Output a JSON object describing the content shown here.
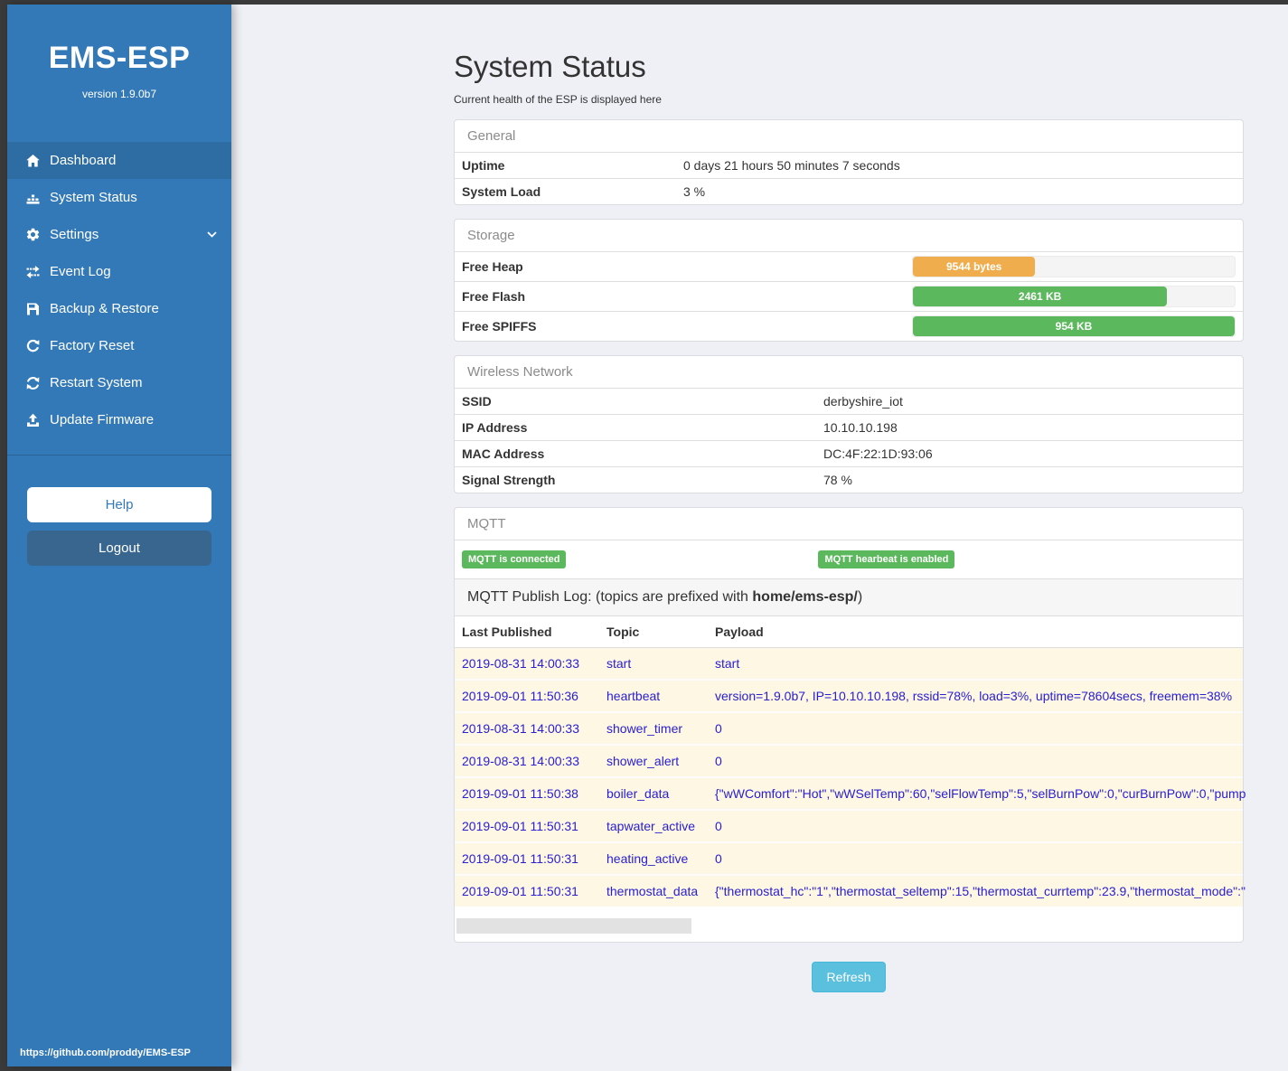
{
  "colors": {
    "sidebar_blue": "#3379b7",
    "active_item_blue": "#2d6da4",
    "badge_green": "#5cb85c",
    "bar_orange": "#f0ad4e",
    "bar_green": "#5cb85c",
    "refresh_blue": "#5bc0de",
    "log_text_blue": "#2a20d0",
    "log_row_cream": "#fdf7e3"
  },
  "sidebar": {
    "brand": "EMS-ESP",
    "version": "version 1.9.0b7",
    "items": [
      {
        "label": "Dashboard",
        "icon": "home-icon",
        "active": true,
        "chevron": false
      },
      {
        "label": "System Status",
        "icon": "status-icon",
        "active": false,
        "chevron": false
      },
      {
        "label": "Settings",
        "icon": "gear-icon",
        "active": false,
        "chevron": true
      },
      {
        "label": "Event Log",
        "icon": "exchange-icon",
        "active": false,
        "chevron": false
      },
      {
        "label": "Backup & Restore",
        "icon": "save-icon",
        "active": false,
        "chevron": false
      },
      {
        "label": "Factory Reset",
        "icon": "rotate-icon",
        "active": false,
        "chevron": false
      },
      {
        "label": "Restart System",
        "icon": "refresh-icon",
        "active": false,
        "chevron": false
      },
      {
        "label": "Update Firmware",
        "icon": "upload-icon",
        "active": false,
        "chevron": false
      }
    ],
    "help_label": "Help",
    "logout_label": "Logout",
    "footer_link": "https://github.com/proddy/EMS-ESP"
  },
  "page": {
    "title": "System Status",
    "subtitle": "Current health of the ESP is displayed here"
  },
  "panels": {
    "general": {
      "title": "General",
      "rows": [
        {
          "label": "Uptime",
          "value": "0 days 21 hours 50 minutes 7 seconds"
        },
        {
          "label": "System Load",
          "value": "3 %"
        }
      ]
    },
    "storage": {
      "title": "Storage",
      "rows": [
        {
          "label": "Free Heap",
          "value": "9544 bytes",
          "percent": 38,
          "color": "#f0ad4e"
        },
        {
          "label": "Free Flash",
          "value": "2461 KB",
          "percent": 79,
          "color": "#5cb85c"
        },
        {
          "label": "Free SPIFFS",
          "value": "954 KB",
          "percent": 100,
          "color": "#5cb85c"
        }
      ]
    },
    "wireless": {
      "title": "Wireless Network",
      "rows": [
        {
          "label": "SSID",
          "value": "derbyshire_iot"
        },
        {
          "label": "IP Address",
          "value": "10.10.10.198"
        },
        {
          "label": "MAC Address",
          "value": "DC:4F:22:1D:93:06"
        },
        {
          "label": "Signal Strength",
          "value": "78 %"
        }
      ]
    },
    "mqtt": {
      "title": "MQTT",
      "badges": [
        {
          "label": "MQTT is connected"
        },
        {
          "label": "MQTT hearbeat is enabled"
        }
      ],
      "log_title_prefix": "MQTT Publish Log: (topics are prefixed with ",
      "log_topic_prefix": "home/ems-esp/",
      "log_title_suffix": ")",
      "columns": [
        "Last Published",
        "Topic",
        "Payload"
      ],
      "rows": [
        {
          "last_published": "2019-08-31 14:00:33",
          "topic": "start",
          "payload": "start"
        },
        {
          "last_published": "2019-09-01 11:50:36",
          "topic": "heartbeat",
          "payload": "version=1.9.0b7, IP=10.10.10.198, rssid=78%, load=3%, uptime=78604secs, freemem=38%"
        },
        {
          "last_published": "2019-08-31 14:00:33",
          "topic": "shower_timer",
          "payload": "0"
        },
        {
          "last_published": "2019-08-31 14:00:33",
          "topic": "shower_alert",
          "payload": "0"
        },
        {
          "last_published": "2019-09-01 11:50:38",
          "topic": "boiler_data",
          "payload": "{\"wWComfort\":\"Hot\",\"wWSelTemp\":60,\"selFlowTemp\":5,\"selBurnPow\":0,\"curBurnPow\":0,\"pump"
        },
        {
          "last_published": "2019-09-01 11:50:31",
          "topic": "tapwater_active",
          "payload": "0"
        },
        {
          "last_published": "2019-09-01 11:50:31",
          "topic": "heating_active",
          "payload": "0"
        },
        {
          "last_published": "2019-09-01 11:50:31",
          "topic": "thermostat_data",
          "payload": "{\"thermostat_hc\":\"1\",\"thermostat_seltemp\":15,\"thermostat_currtemp\":23.9,\"thermostat_mode\":\""
        }
      ]
    }
  },
  "refresh_label": "Refresh"
}
